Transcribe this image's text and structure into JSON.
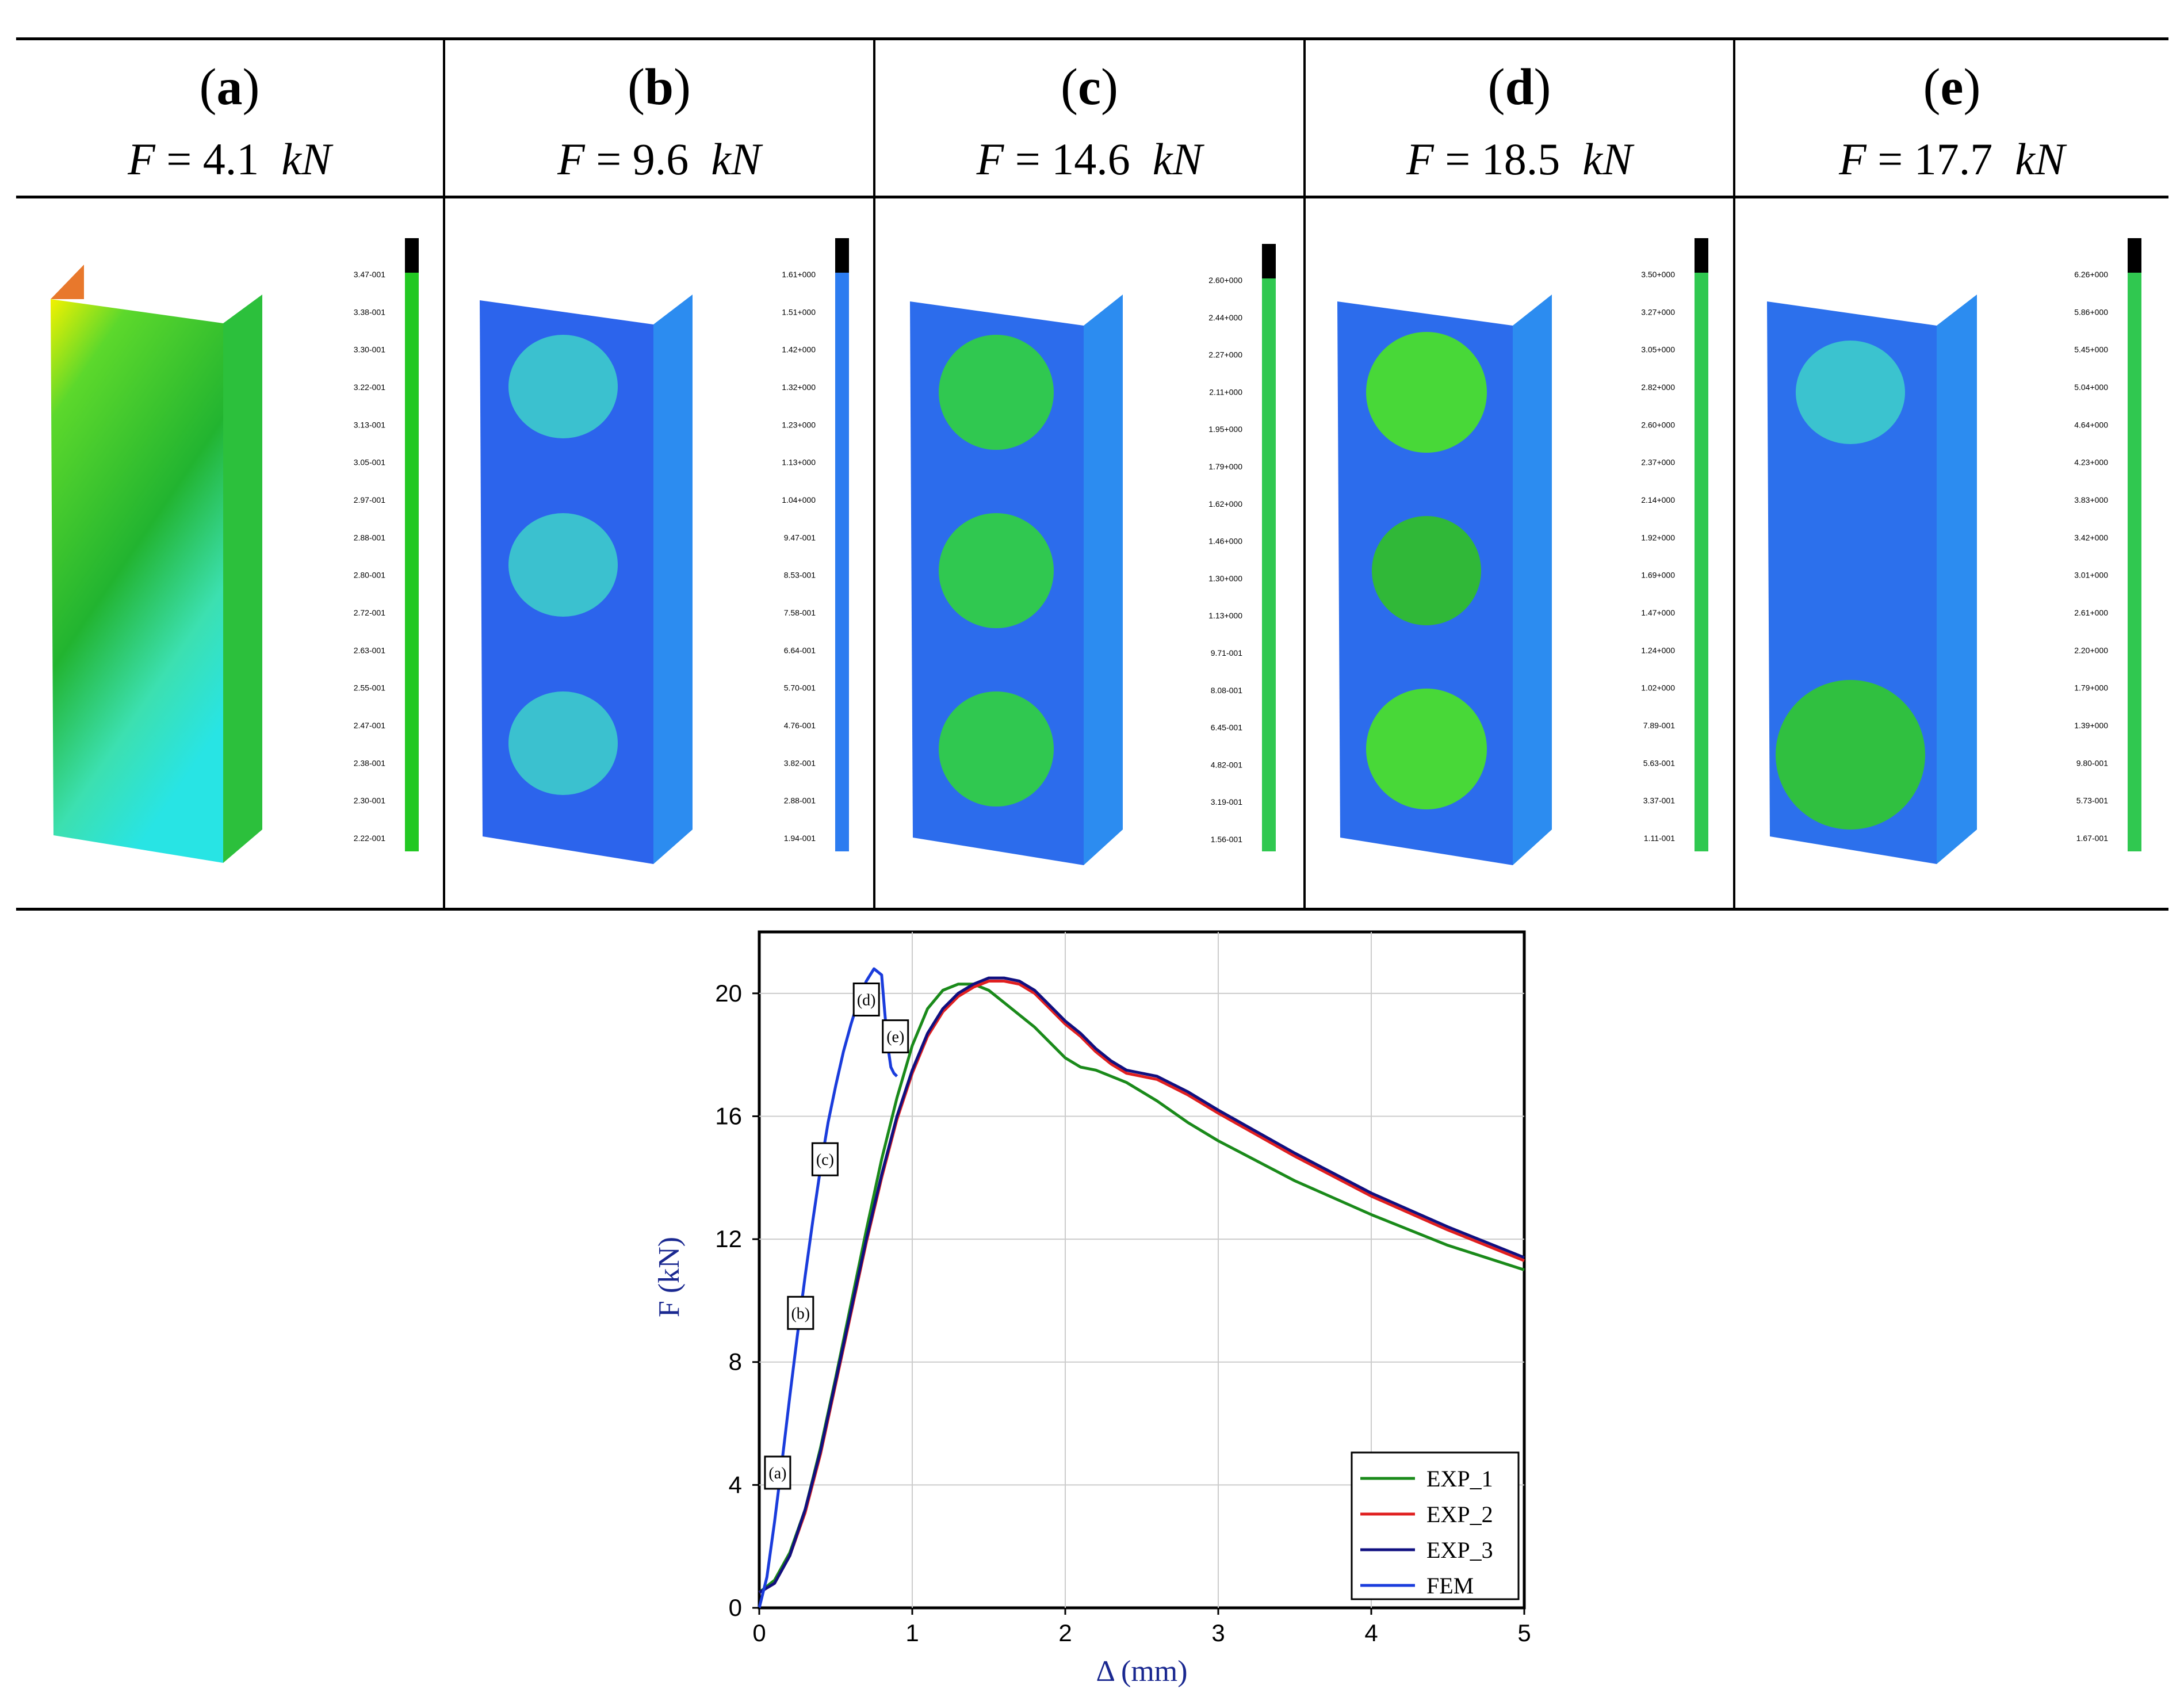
{
  "panels": [
    {
      "letter": "a",
      "force_value": "4.1",
      "force_unit": "kN",
      "legend": [
        "3.47-001",
        "3.38-001",
        "3.30-001",
        "3.22-001",
        "3.13-001",
        "3.05-001",
        "2.97-001",
        "2.88-001",
        "2.80-001",
        "2.72-001",
        "2.63-001",
        "2.55-001",
        "2.47-001",
        "2.38-001",
        "2.30-001",
        "2.22-001"
      ]
    },
    {
      "letter": "b",
      "force_value": "9.6",
      "force_unit": "kN",
      "legend": [
        "1.61+000",
        "1.51+000",
        "1.42+000",
        "1.32+000",
        "1.23+000",
        "1.13+000",
        "1.04+000",
        "9.47-001",
        "8.53-001",
        "7.58-001",
        "6.64-001",
        "5.70-001",
        "4.76-001",
        "3.82-001",
        "2.88-001",
        "1.94-001"
      ]
    },
    {
      "letter": "c",
      "force_value": "14.6",
      "force_unit": "kN",
      "legend": [
        "2.60+000",
        "2.44+000",
        "2.27+000",
        "2.11+000",
        "1.95+000",
        "1.79+000",
        "1.62+000",
        "1.46+000",
        "1.30+000",
        "1.13+000",
        "9.71-001",
        "8.08-001",
        "6.45-001",
        "4.82-001",
        "3.19-001",
        "1.56-001"
      ]
    },
    {
      "letter": "d",
      "force_value": "18.5",
      "force_unit": "kN",
      "legend": [
        "3.50+000",
        "3.27+000",
        "3.05+000",
        "2.82+000",
        "2.60+000",
        "2.37+000",
        "2.14+000",
        "1.92+000",
        "1.69+000",
        "1.47+000",
        "1.24+000",
        "1.02+000",
        "7.89-001",
        "5.63-001",
        "3.37-001",
        "1.11-001"
      ]
    },
    {
      "letter": "e",
      "force_value": "17.7",
      "force_unit": "kN",
      "legend": [
        "6.26+000",
        "5.86+000",
        "5.45+000",
        "5.04+000",
        "4.64+000",
        "4.23+000",
        "3.83+000",
        "3.42+000",
        "3.01+000",
        "2.61+000",
        "2.20+000",
        "1.79+000",
        "1.39+000",
        "9.80-001",
        "5.73-001",
        "1.67-001"
      ]
    }
  ],
  "chart_data": {
    "type": "line",
    "xlabel": "Δ (mm)",
    "ylabel": "F (kN)",
    "xlim": [
      0,
      5
    ],
    "ylim": [
      0,
      22
    ],
    "xticks": [
      "0",
      "1",
      "2",
      "3",
      "4",
      "5"
    ],
    "yticks": [
      "0",
      "4",
      "8",
      "12",
      "16",
      "20"
    ],
    "series": [
      {
        "name": "EXP_1",
        "color": "#1a8a1a",
        "x": [
          0,
          0.1,
          0.2,
          0.3,
          0.4,
          0.5,
          0.6,
          0.7,
          0.8,
          0.9,
          1.0,
          1.1,
          1.2,
          1.3,
          1.4,
          1.5,
          1.6,
          1.7,
          1.8,
          1.9,
          2.0,
          2.1,
          2.2,
          2.4,
          2.6,
          2.8,
          3.0,
          3.5,
          4.0,
          4.5,
          5.0
        ],
        "y": [
          0.5,
          0.9,
          1.8,
          3.2,
          5.2,
          7.5,
          9.9,
          12.3,
          14.6,
          16.6,
          18.3,
          19.5,
          20.1,
          20.3,
          20.3,
          20.1,
          19.7,
          19.3,
          18.9,
          18.4,
          17.9,
          17.6,
          17.5,
          17.1,
          16.5,
          15.8,
          15.2,
          13.9,
          12.8,
          11.8,
          11.0
        ]
      },
      {
        "name": "EXP_2",
        "color": "#e02020",
        "x": [
          0,
          0.1,
          0.2,
          0.3,
          0.4,
          0.5,
          0.6,
          0.7,
          0.8,
          0.9,
          1.0,
          1.1,
          1.2,
          1.3,
          1.4,
          1.5,
          1.6,
          1.7,
          1.8,
          1.9,
          2.0,
          2.1,
          2.2,
          2.3,
          2.4,
          2.6,
          2.8,
          3.0,
          3.5,
          4.0,
          4.5,
          5.0
        ],
        "y": [
          0.5,
          0.8,
          1.7,
          3.1,
          5.0,
          7.3,
          9.6,
          11.9,
          14.0,
          15.9,
          17.4,
          18.6,
          19.4,
          19.9,
          20.2,
          20.4,
          20.4,
          20.3,
          20.0,
          19.5,
          19.0,
          18.6,
          18.1,
          17.7,
          17.4,
          17.2,
          16.7,
          16.1,
          14.7,
          13.4,
          12.3,
          11.3
        ]
      },
      {
        "name": "EXP_3",
        "color": "#101080",
        "x": [
          0,
          0.1,
          0.2,
          0.3,
          0.4,
          0.5,
          0.6,
          0.7,
          0.8,
          0.9,
          1.0,
          1.1,
          1.2,
          1.3,
          1.4,
          1.5,
          1.6,
          1.7,
          1.8,
          1.9,
          2.0,
          2.1,
          2.2,
          2.3,
          2.4,
          2.6,
          2.8,
          3.0,
          3.5,
          4.0,
          4.5,
          5.0
        ],
        "y": [
          0.5,
          0.8,
          1.7,
          3.2,
          5.1,
          7.4,
          9.7,
          12.0,
          14.1,
          16.0,
          17.5,
          18.7,
          19.5,
          20.0,
          20.3,
          20.5,
          20.5,
          20.4,
          20.1,
          19.6,
          19.1,
          18.7,
          18.2,
          17.8,
          17.5,
          17.3,
          16.8,
          16.2,
          14.8,
          13.5,
          12.4,
          11.4
        ]
      },
      {
        "name": "FEM",
        "color": "#1a3cdc",
        "x": [
          0,
          0.05,
          0.1,
          0.15,
          0.2,
          0.25,
          0.3,
          0.35,
          0.4,
          0.45,
          0.5,
          0.55,
          0.6,
          0.65,
          0.7,
          0.75,
          0.8,
          0.82,
          0.84,
          0.86,
          0.88,
          0.9
        ],
        "y": [
          0,
          1.0,
          2.8,
          4.8,
          6.9,
          8.9,
          10.8,
          12.6,
          14.3,
          15.8,
          17.0,
          18.1,
          19.0,
          19.8,
          20.4,
          20.8,
          20.6,
          19.4,
          18.3,
          17.6,
          17.4,
          17.3
        ]
      }
    ],
    "annotations": [
      {
        "label": "(a)",
        "x": 0.12,
        "y": 4.4
      },
      {
        "label": "(b)",
        "x": 0.27,
        "y": 9.6
      },
      {
        "label": "(c)",
        "x": 0.43,
        "y": 14.6
      },
      {
        "label": "(d)",
        "x": 0.7,
        "y": 19.8
      },
      {
        "label": "(e)",
        "x": 0.89,
        "y": 18.6
      }
    ],
    "legend_position": "bottom-right"
  }
}
